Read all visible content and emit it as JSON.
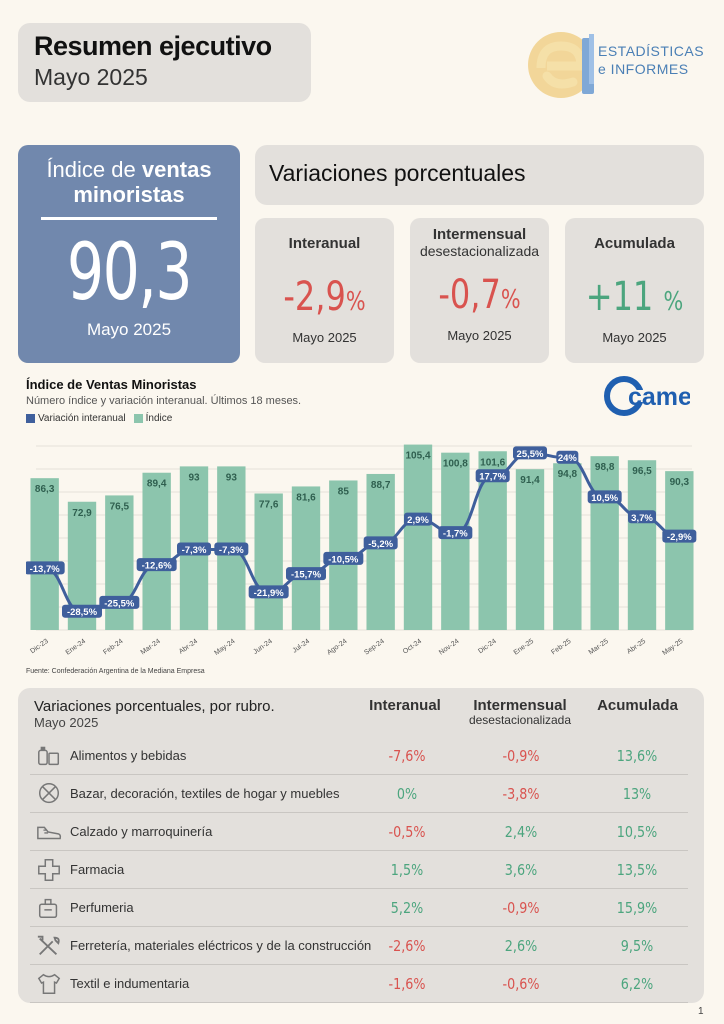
{
  "header": {
    "title": "Resumen ejecutivo",
    "subtitle": "Mayo 2025"
  },
  "logo": {
    "line1": "ESTADÍSTICAS",
    "line2": "e INFORMES"
  },
  "index_card": {
    "title_a": "Índice de ",
    "title_b": "ventas",
    "title_c": "minoristas",
    "value": "90,3",
    "date": "Mayo 2025"
  },
  "variations": {
    "title": "Variaciones porcentuales",
    "cards": [
      {
        "label": "Interanual",
        "label_sub": "",
        "value": "-2,9",
        "unit": "%",
        "date": "Mayo 2025",
        "color": "#d9534f"
      },
      {
        "label": "Intermensual",
        "label_sub": "desestacionalizada",
        "value": "-0,7",
        "unit": "%",
        "date": "Mayo 2025",
        "color": "#d9534f"
      },
      {
        "label": "Acumulada",
        "label_sub": "",
        "value": "+11",
        "unit": "%",
        "date": "Mayo 2025",
        "color": "#4ca57e"
      }
    ]
  },
  "chart_header": {
    "title": "Índice de Ventas Minoristas",
    "subtitle": "Número índice y variación interanual. Últimos 18 meses.",
    "legend_line": "Variación interanual",
    "legend_bar": "Índice",
    "source": "Fuente: Confederación Argentina de la Mediana Empresa",
    "brand": "came"
  },
  "chart_data": {
    "type": "bar",
    "categories": [
      "Dic-23",
      "Ene-24",
      "Feb-24",
      "Mar-24",
      "Abr-24",
      "May-24",
      "Jun-24",
      "Jul-24",
      "Ago-24",
      "Sep-24",
      "Oct-24",
      "Nov-24",
      "Dic-24",
      "Ene-25",
      "Feb-25",
      "Mar-25",
      "Abr-25",
      "May-25"
    ],
    "series": [
      {
        "name": "Índice",
        "type": "bar",
        "color": "#8cc5ad",
        "values": [
          86.3,
          72.9,
          76.5,
          89.4,
          93,
          93,
          77.6,
          81.6,
          85,
          88.7,
          105.4,
          100.8,
          101.6,
          91.4,
          94.8,
          98.8,
          96.5,
          90.3
        ],
        "labels": [
          "86,3",
          "72,9",
          "76,5",
          "89,4",
          "93",
          "93",
          "77,6",
          "81,6",
          "85",
          "88,7",
          "105,4",
          "100,8",
          "101,6",
          "91,4",
          "94,8",
          "98,8",
          "96,5",
          "90,3"
        ]
      },
      {
        "name": "Variación interanual",
        "type": "line",
        "color": "#3f5f9c",
        "values": [
          -13.7,
          -28.5,
          -25.5,
          -12.6,
          -7.3,
          -7.3,
          -21.9,
          -15.7,
          -10.5,
          -5.2,
          2.9,
          -1.7,
          17.7,
          25.5,
          24,
          10.5,
          3.7,
          -2.9
        ],
        "labels": [
          "-13,7%",
          "-28,5%",
          "-25,5%",
          "-12,6%",
          "-7,3%",
          "-7,3%",
          "-21,9%",
          "-15,7%",
          "-10,5%",
          "-5,2%",
          "2,9%",
          "-1,7%",
          "17,7%",
          "25,5%",
          "24%",
          "10,5%",
          "3,7%",
          "-2,9%"
        ]
      }
    ],
    "grid": true
  },
  "table": {
    "title": "Variaciones porcentuales, por rubro.",
    "subtitle": "Mayo 2025",
    "col_interanual": "Interanual",
    "col_intermensual": "Intermensual",
    "col_intermensual_sub": "desestacionalizada",
    "col_acumulada": "Acumulada",
    "rows": [
      {
        "icon": "groceries-icon",
        "name": "Alimentos y bebidas",
        "interanual": "-7,6%",
        "intermensual": "-0,9%",
        "acumulada": "13,6%",
        "c1": "#d9534f",
        "c2": "#d9534f",
        "c3": "#4ca57e"
      },
      {
        "icon": "furniture-icon",
        "name": "Bazar, decoración, textiles de hogar y muebles",
        "interanual": "0%",
        "intermensual": "-3,8%",
        "acumulada": "13%",
        "c1": "#4ca57e",
        "c2": "#d9534f",
        "c3": "#4ca57e"
      },
      {
        "icon": "shoe-icon",
        "name": "Calzado y marroquinería",
        "interanual": "-0,5%",
        "intermensual": "2,4%",
        "acumulada": "10,5%",
        "c1": "#d9534f",
        "c2": "#4ca57e",
        "c3": "#4ca57e"
      },
      {
        "icon": "pharmacy-cross-icon",
        "name": "Farmacia",
        "interanual": "1,5%",
        "intermensual": "3,6%",
        "acumulada": "13,5%",
        "c1": "#4ca57e",
        "c2": "#4ca57e",
        "c3": "#4ca57e"
      },
      {
        "icon": "perfume-icon",
        "name": "Perfumeria",
        "interanual": "5,2%",
        "intermensual": "-0,9%",
        "acumulada": "15,9%",
        "c1": "#4ca57e",
        "c2": "#d9534f",
        "c3": "#4ca57e"
      },
      {
        "icon": "tools-icon",
        "name": "Ferretería, materiales eléctricos y de la construcción",
        "interanual": "-2,6%",
        "intermensual": "2,6%",
        "acumulada": "9,5%",
        "c1": "#d9534f",
        "c2": "#4ca57e",
        "c3": "#4ca57e"
      },
      {
        "icon": "shirt-icon",
        "name": "Textil e indumentaria",
        "interanual": "-1,6%",
        "intermensual": "-0,6%",
        "acumulada": "6,2%",
        "c1": "#d9534f",
        "c2": "#d9534f",
        "c3": "#4ca57e"
      }
    ]
  },
  "page_number": "1"
}
